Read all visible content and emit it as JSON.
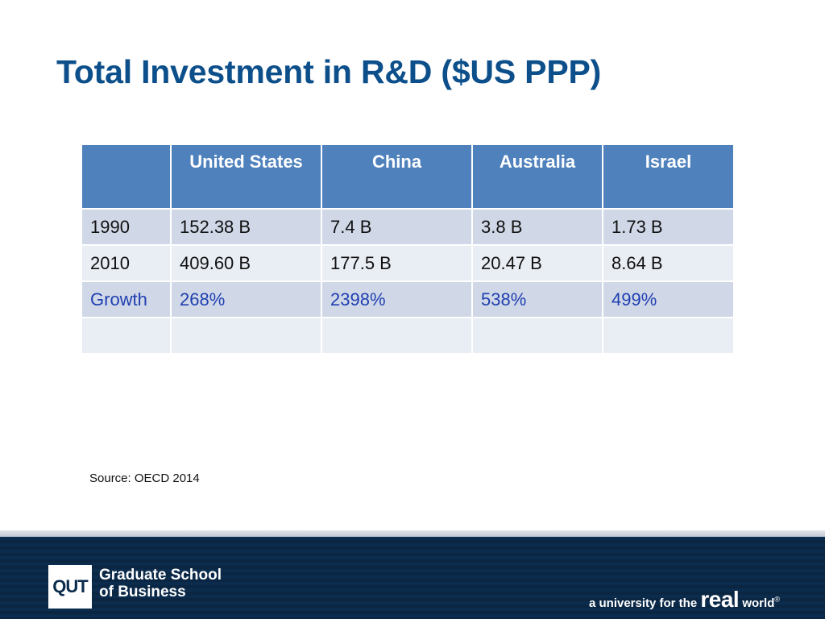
{
  "slide": {
    "title": "Total Investment in R&D ($US PPP)"
  },
  "table": {
    "columns": [
      "",
      "United States",
      "China",
      "Australia",
      "Israel"
    ],
    "rows": [
      [
        "1990",
        "152.38 B",
        "7.4 B",
        "3.8 B",
        "1.73 B"
      ],
      [
        "2010",
        "409.60 B",
        "177.5 B",
        "20.47 B",
        "8.64 B"
      ],
      [
        "Growth",
        "268%",
        "2398%",
        "538%",
        "499%"
      ],
      [
        "",
        "",
        "",
        "",
        ""
      ]
    ]
  },
  "source": "Source: OECD 2014",
  "footer": {
    "logo_text": "QUT",
    "school_line1": "Graduate School",
    "school_line2": "of Business",
    "tagline_pre": "a university for the ",
    "tagline_real": "real",
    "tagline_world": " world",
    "tagline_mark": "®"
  },
  "colors": {
    "title": "#0c4f8a",
    "header_fill": "#4f81bd",
    "row_dark": "#d0d8e8",
    "row_light": "#e9edf4",
    "growth_text": "#1f3fb0",
    "footer_bar": "#0c2c4d"
  }
}
